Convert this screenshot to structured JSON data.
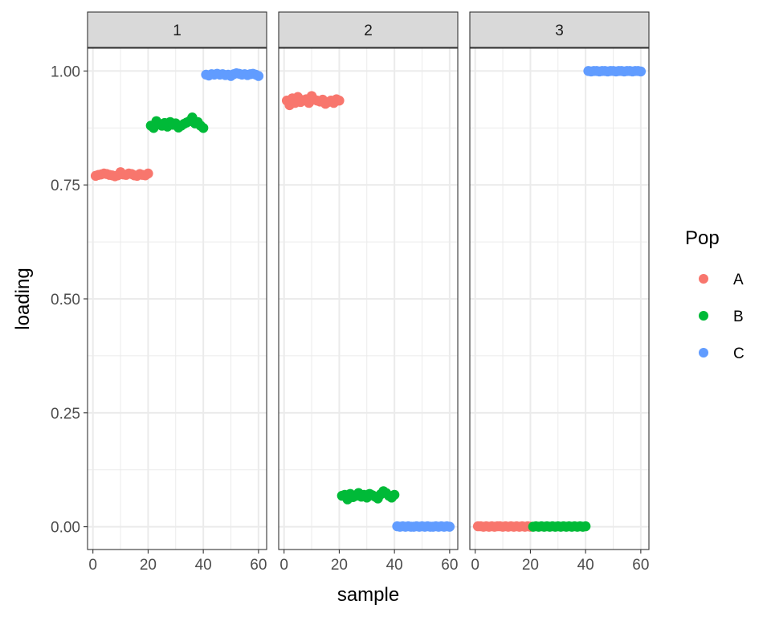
{
  "chart_data": {
    "type": "scatter",
    "facet_variable": "",
    "facets": [
      {
        "label": "1",
        "series": [
          {
            "name": "A",
            "x": [
              1,
              2,
              3,
              4,
              5,
              6,
              7,
              8,
              9,
              10,
              11,
              12,
              13,
              14,
              15,
              16,
              17,
              18,
              19,
              20
            ],
            "y": [
              0.77,
              0.772,
              0.773,
              0.775,
              0.774,
              0.772,
              0.771,
              0.769,
              0.771,
              0.778,
              0.773,
              0.772,
              0.775,
              0.774,
              0.771,
              0.77,
              0.774,
              0.772,
              0.771,
              0.775
            ]
          },
          {
            "name": "B",
            "x": [
              21,
              22,
              23,
              24,
              25,
              26,
              27,
              28,
              29,
              30,
              31,
              32,
              33,
              34,
              35,
              36,
              37,
              38,
              39,
              40
            ],
            "y": [
              0.88,
              0.875,
              0.89,
              0.884,
              0.88,
              0.886,
              0.878,
              0.888,
              0.882,
              0.885,
              0.876,
              0.88,
              0.884,
              0.887,
              0.89,
              0.898,
              0.885,
              0.888,
              0.88,
              0.875
            ]
          },
          {
            "name": "C",
            "x": [
              41,
              42,
              43,
              44,
              45,
              46,
              47,
              48,
              49,
              50,
              51,
              52,
              53,
              54,
              55,
              56,
              57,
              58,
              59,
              60
            ],
            "y": [
              0.992,
              0.99,
              0.993,
              0.992,
              0.994,
              0.992,
              0.993,
              0.991,
              0.992,
              0.989,
              0.993,
              0.995,
              0.994,
              0.992,
              0.993,
              0.991,
              0.993,
              0.994,
              0.992,
              0.989
            ]
          }
        ]
      },
      {
        "label": "2",
        "series": [
          {
            "name": "A",
            "x": [
              1,
              2,
              3,
              4,
              5,
              6,
              7,
              8,
              9,
              10,
              11,
              12,
              13,
              14,
              15,
              16,
              17,
              18,
              19,
              20
            ],
            "y": [
              0.935,
              0.925,
              0.94,
              0.93,
              0.943,
              0.932,
              0.936,
              0.938,
              0.93,
              0.945,
              0.937,
              0.935,
              0.933,
              0.937,
              0.928,
              0.932,
              0.935,
              0.93,
              0.938,
              0.935
            ]
          },
          {
            "name": "B",
            "x": [
              21,
              22,
              23,
              24,
              25,
              26,
              27,
              28,
              29,
              30,
              31,
              32,
              33,
              34,
              35,
              36,
              37,
              38,
              39,
              40
            ],
            "y": [
              0.068,
              0.07,
              0.06,
              0.072,
              0.065,
              0.068,
              0.074,
              0.066,
              0.07,
              0.064,
              0.072,
              0.069,
              0.066,
              0.062,
              0.071,
              0.078,
              0.074,
              0.068,
              0.064,
              0.07
            ]
          },
          {
            "name": "C",
            "x": [
              41,
              42,
              43,
              44,
              45,
              46,
              47,
              48,
              49,
              50,
              51,
              52,
              53,
              54,
              55,
              56,
              57,
              58,
              59,
              60
            ],
            "y": [
              0.001,
              0.0,
              0.001,
              0.0,
              0.001,
              0.0,
              0.0,
              0.001,
              0.0,
              0.001,
              0.0,
              0.001,
              0.0,
              0.0,
              0.001,
              0.0,
              0.001,
              0.0,
              0.001,
              0.0
            ]
          }
        ]
      },
      {
        "label": "3",
        "series": [
          {
            "name": "A",
            "x": [
              1,
              2,
              3,
              4,
              5,
              6,
              7,
              8,
              9,
              10,
              11,
              12,
              13,
              14,
              15,
              16,
              17,
              18,
              19,
              20
            ],
            "y": [
              0.001,
              0.001,
              0.0,
              0.001,
              0.0,
              0.001,
              0.0,
              0.001,
              0.001,
              0.0,
              0.001,
              0.0,
              0.001,
              0.0,
              0.001,
              0.0,
              0.001,
              0.0,
              0.001,
              0.0
            ]
          },
          {
            "name": "B",
            "x": [
              21,
              22,
              23,
              24,
              25,
              26,
              27,
              28,
              29,
              30,
              31,
              32,
              33,
              34,
              35,
              36,
              37,
              38,
              39,
              40
            ],
            "y": [
              0.0,
              0.001,
              0.0,
              0.001,
              0.0,
              0.001,
              0.0,
              0.001,
              0.0,
              0.001,
              0.0,
              0.001,
              0.0,
              0.001,
              0.0,
              0.001,
              0.0,
              0.001,
              0.0,
              0.001
            ]
          },
          {
            "name": "C",
            "x": [
              41,
              42,
              43,
              44,
              45,
              46,
              47,
              48,
              49,
              50,
              51,
              52,
              53,
              54,
              55,
              56,
              57,
              58,
              59,
              60
            ],
            "y": [
              1.0,
              0.999,
              1.0,
              1.0,
              0.999,
              1.0,
              1.0,
              0.999,
              1.0,
              1.0,
              0.999,
              1.0,
              1.0,
              0.999,
              1.0,
              1.0,
              0.999,
              1.0,
              1.0,
              0.999
            ]
          }
        ]
      }
    ],
    "xlabel": "sample",
    "ylabel": "loading",
    "xlim": [
      -1.95,
      62.95
    ],
    "ylim": [
      -0.05,
      1.05
    ],
    "xticks": [
      0,
      20,
      40,
      60
    ],
    "yticks": [
      0.0,
      0.25,
      0.5,
      0.75,
      1.0
    ],
    "ytick_labels": [
      "0.00",
      "0.25",
      "0.50",
      "0.75",
      "1.00"
    ],
    "grid": true,
    "legend": {
      "title": "Pop",
      "position": "right",
      "entries": [
        {
          "label": "A",
          "color": "#F8766D"
        },
        {
          "label": "B",
          "color": "#00BA38"
        },
        {
          "label": "C",
          "color": "#619CFF"
        }
      ]
    },
    "colors": {
      "A": "#F8766D",
      "B": "#00BA38",
      "C": "#619CFF"
    }
  }
}
